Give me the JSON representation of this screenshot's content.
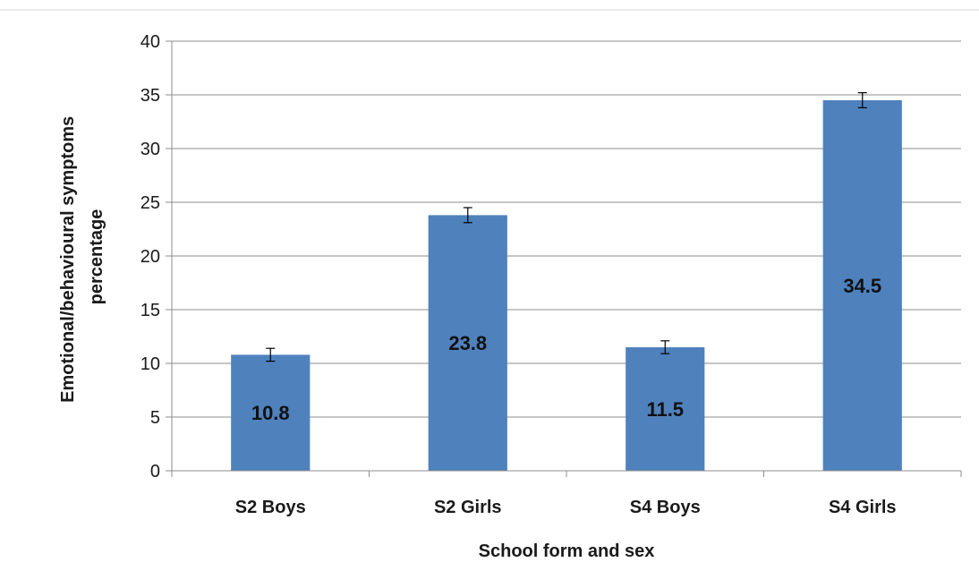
{
  "chart_data": {
    "type": "bar",
    "categories": [
      "S2 Boys",
      "S2 Girls",
      "S4 Boys",
      "S4 Girls"
    ],
    "values": [
      10.8,
      23.8,
      11.5,
      34.5
    ],
    "error_bars": [
      0.6,
      0.7,
      0.6,
      0.7
    ],
    "data_labels": [
      "10.8",
      "23.8",
      "11.5",
      "34.5"
    ],
    "xlabel": "School form and sex",
    "ylabel_lines": [
      "Emotional/behavioural symptoms",
      "percentage"
    ],
    "ylim": [
      0,
      40
    ],
    "yticks": [
      0,
      5,
      10,
      15,
      20,
      25,
      30,
      35,
      40
    ],
    "grid": true,
    "legend": "none",
    "colors": {
      "bar": "#4f81bd",
      "grid": "#8c8c8c",
      "axis": "#8c8c8c",
      "error": "#000000"
    }
  }
}
